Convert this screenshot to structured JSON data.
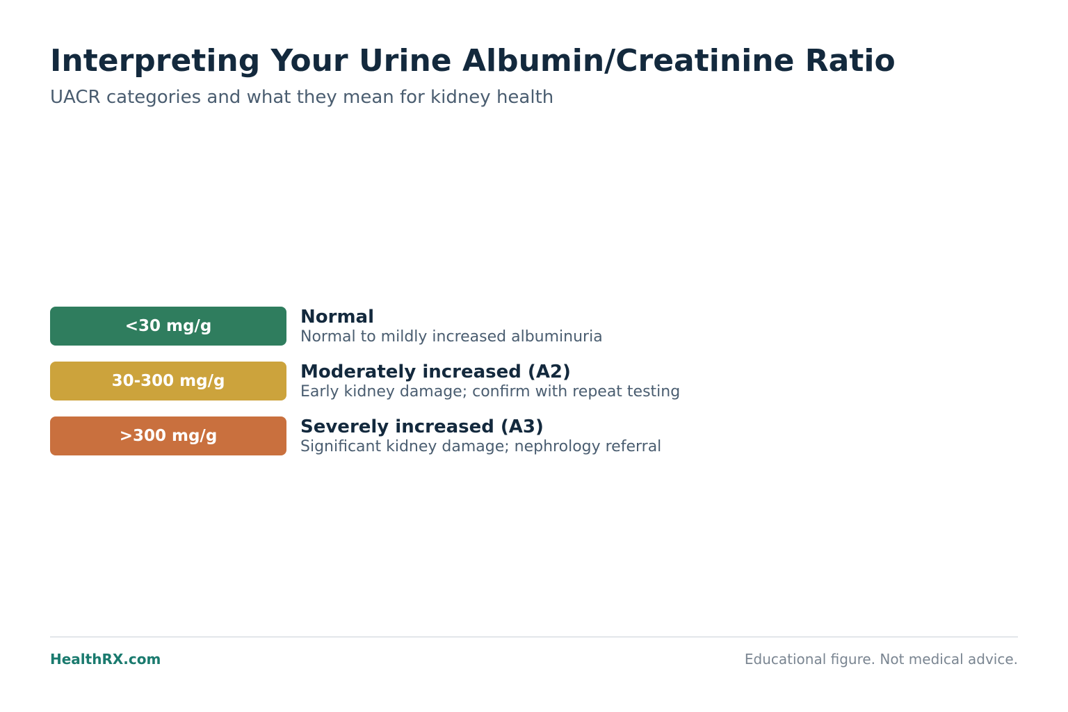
{
  "header": {
    "title": "Interpreting Your Urine Albumin/Creatinine Ratio",
    "subtitle": "UACR categories and what they mean for kidney health"
  },
  "categories": [
    {
      "range": "<30 mg/g",
      "label": "Normal",
      "description": "Normal to mildly increased albuminuria",
      "color": "#2f7d5e"
    },
    {
      "range": "30-300 mg/g",
      "label": "Moderately increased (A2)",
      "description": "Early kidney damage; confirm with repeat testing",
      "color": "#cca33c"
    },
    {
      "range": ">300 mg/g",
      "label": "Severely increased (A3)",
      "description": "Significant kidney damage; nephrology referral",
      "color": "#c9703e"
    }
  ],
  "footer": {
    "brand": "HealthRX.com",
    "disclaimer": "Educational figure. Not medical advice."
  }
}
